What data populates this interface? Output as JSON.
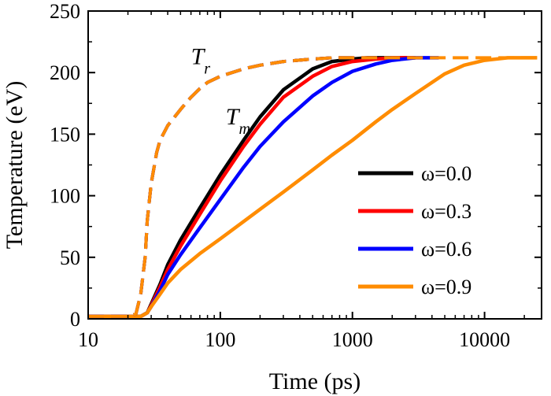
{
  "chart_data": {
    "type": "line",
    "xlabel": "Time (ps)",
    "ylabel": "Temperature (eV)",
    "xscale": "log",
    "xlim": [
      10,
      27000
    ],
    "ylim": [
      0,
      250
    ],
    "xticks": [
      10,
      100,
      1000,
      10000
    ],
    "xtick_labels": [
      "10",
      "100",
      "1000",
      "10000"
    ],
    "yticks": [
      0,
      50,
      100,
      150,
      200,
      250
    ],
    "ytick_labels": [
      "0",
      "50",
      "100",
      "150",
      "200",
      "250"
    ],
    "grid": false,
    "legend_position": "lower-right",
    "annotations": [
      {
        "text": "T",
        "sub": "r",
        "x": 60,
        "y": 207
      },
      {
        "text": "T",
        "sub": "m",
        "x": 110,
        "y": 158
      }
    ],
    "series": [
      {
        "name": "ω=0.0",
        "color": "#000000",
        "style": "solid",
        "variable": "Tm",
        "x": [
          10,
          20,
          25,
          28,
          30,
          35,
          40,
          50,
          70,
          100,
          150,
          200,
          300,
          500,
          700,
          1000,
          1300,
          1500,
          2000,
          3000
        ],
        "y": [
          2,
          2,
          2,
          5,
          12,
          28,
          44,
          64,
          90,
          117,
          145,
          164,
          186,
          203,
          209,
          211,
          212,
          212,
          212,
          212
        ]
      },
      {
        "name": "ω=0.3",
        "color": "#ff0000",
        "style": "solid",
        "variable": "Tm",
        "x": [
          10,
          20,
          25,
          28,
          30,
          35,
          40,
          50,
          70,
          100,
          150,
          200,
          300,
          500,
          700,
          1000,
          1500,
          2000,
          3000
        ],
        "y": [
          2,
          2,
          2,
          5,
          11,
          26,
          40,
          59,
          85,
          112,
          140,
          158,
          180,
          197,
          205,
          209,
          211,
          212,
          212
        ]
      },
      {
        "name": "ω=0.6",
        "color": "#0000ff",
        "style": "solid",
        "variable": "Tm",
        "x": [
          10,
          20,
          25,
          28,
          30,
          35,
          40,
          50,
          70,
          100,
          150,
          200,
          300,
          500,
          700,
          1000,
          1500,
          2000,
          3000,
          4500
        ],
        "y": [
          2,
          2,
          2,
          5,
          10,
          23,
          36,
          52,
          74,
          97,
          123,
          140,
          160,
          181,
          192,
          201,
          207,
          210,
          212,
          212
        ]
      },
      {
        "name": "ω=0.9",
        "color": "#ff8c00",
        "style": "solid",
        "variable": "Tm",
        "x": [
          10,
          20,
          25,
          28,
          30,
          35,
          40,
          50,
          70,
          100,
          150,
          200,
          300,
          500,
          700,
          1000,
          1500,
          2000,
          3000,
          5000,
          7000,
          10000,
          15000,
          20000,
          25000
        ],
        "y": [
          2,
          2,
          2,
          5,
          10,
          20,
          29,
          40,
          53,
          65,
          79,
          89,
          103,
          121,
          133,
          145,
          160,
          170,
          183,
          199,
          206,
          210,
          212,
          212,
          212
        ]
      },
      {
        "name": "ω=0.0",
        "color": "#000000",
        "style": "dashed",
        "variable": "Tr",
        "x": [
          10,
          20,
          23,
          25,
          27,
          28,
          30,
          33,
          35,
          40,
          50,
          60,
          70,
          80,
          100,
          150,
          200,
          300,
          500,
          700,
          1000
        ],
        "y": [
          2,
          2,
          4,
          20,
          50,
          80,
          110,
          135,
          145,
          157,
          170,
          180,
          187,
          192,
          197,
          203,
          206,
          209,
          211,
          212,
          212
        ]
      },
      {
        "name": "ω=0.3",
        "color": "#ff0000",
        "style": "dashed",
        "variable": "Tr",
        "x": [
          10,
          20,
          23,
          25,
          27,
          28,
          30,
          33,
          35,
          40,
          50,
          60,
          70,
          80,
          100,
          150,
          200,
          300,
          500,
          700,
          1000,
          1500
        ],
        "y": [
          2,
          2,
          4,
          20,
          50,
          80,
          110,
          135,
          145,
          157,
          170,
          180,
          187,
          192,
          197,
          203,
          206,
          209,
          211,
          212,
          212,
          212
        ]
      },
      {
        "name": "ω=0.6",
        "color": "#0000ff",
        "style": "dashed",
        "variable": "Tr",
        "x": [
          10,
          20,
          23,
          25,
          27,
          28,
          30,
          33,
          35,
          40,
          50,
          60,
          70,
          80,
          100,
          150,
          200,
          300,
          500,
          700,
          1000,
          2000,
          4000
        ],
        "y": [
          2,
          2,
          4,
          20,
          50,
          80,
          110,
          135,
          145,
          157,
          170,
          180,
          187,
          192,
          197,
          203,
          206,
          209,
          211,
          212,
          212,
          212,
          212
        ]
      },
      {
        "name": "ω=0.9",
        "color": "#ff8c00",
        "style": "dashed",
        "variable": "Tr",
        "x": [
          10,
          20,
          23,
          25,
          27,
          28,
          30,
          33,
          35,
          40,
          50,
          60,
          70,
          80,
          100,
          150,
          200,
          300,
          500,
          700,
          1000,
          2000,
          5000,
          10000,
          20000,
          25000
        ],
        "y": [
          2,
          2,
          4,
          20,
          50,
          80,
          110,
          135,
          145,
          157,
          170,
          180,
          187,
          192,
          197,
          203,
          206,
          209,
          211,
          212,
          212,
          212,
          212,
          212,
          212,
          212
        ]
      }
    ],
    "legend": [
      {
        "label": "ω=0.0",
        "color": "#000000"
      },
      {
        "label": "ω=0.3",
        "color": "#ff0000"
      },
      {
        "label": "ω=0.6",
        "color": "#0000ff"
      },
      {
        "label": "ω=0.9",
        "color": "#ff8c00"
      }
    ]
  }
}
